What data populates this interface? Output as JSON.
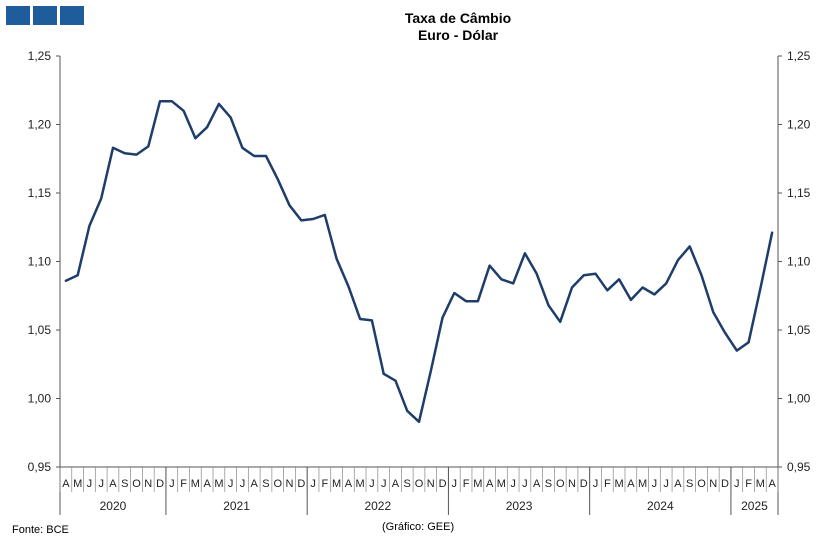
{
  "title": "Taxa de Câmbio",
  "subtitle": "Euro - Dólar",
  "source": "Fonte: BCE",
  "credit": "(Gráfico: GEE)",
  "colors": {
    "line": "#1f3d6b",
    "logo": "#1f5c9b"
  },
  "chart_data": {
    "type": "line",
    "title": "Taxa de Câmbio",
    "subtitle": "Euro - Dólar",
    "ylim": [
      0.95,
      1.25
    ],
    "y_ticks": [
      "0,95",
      "1,00",
      "1,05",
      "1,10",
      "1,15",
      "1,20",
      "1,25"
    ],
    "y_tick_values": [
      0.95,
      1.0,
      1.05,
      1.1,
      1.15,
      1.2,
      1.25
    ],
    "grid": false,
    "months": [
      "A",
      "M",
      "J",
      "J",
      "A",
      "S",
      "O",
      "N",
      "D",
      "J",
      "F",
      "M",
      "A",
      "M",
      "J",
      "J",
      "A",
      "S",
      "O",
      "N",
      "D",
      "J",
      "F",
      "M",
      "A",
      "M",
      "J",
      "J",
      "A",
      "S",
      "O",
      "N",
      "D",
      "J",
      "F",
      "M",
      "A",
      "M",
      "J",
      "J",
      "A",
      "S",
      "O",
      "N",
      "D",
      "J",
      "F",
      "M",
      "A",
      "M",
      "J",
      "J",
      "A",
      "S",
      "O",
      "N",
      "D",
      "J",
      "F",
      "M",
      "A"
    ],
    "years": [
      {
        "label": "2020",
        "count": 9
      },
      {
        "label": "2021",
        "count": 12
      },
      {
        "label": "2022",
        "count": 12
      },
      {
        "label": "2023",
        "count": 12
      },
      {
        "label": "2024",
        "count": 12
      },
      {
        "label": "2025",
        "count": 4
      }
    ],
    "series": [
      {
        "values": [
          1.086,
          1.09,
          1.126,
          1.146,
          1.183,
          1.179,
          1.178,
          1.184,
          1.217,
          1.217,
          1.21,
          1.19,
          1.198,
          1.215,
          1.205,
          1.183,
          1.177,
          1.177,
          1.16,
          1.141,
          1.13,
          1.131,
          1.134,
          1.102,
          1.082,
          1.058,
          1.057,
          1.018,
          1.013,
          0.991,
          0.983,
          1.02,
          1.059,
          1.077,
          1.071,
          1.071,
          1.097,
          1.087,
          1.084,
          1.106,
          1.091,
          1.068,
          1.056,
          1.081,
          1.09,
          1.091,
          1.079,
          1.087,
          1.072,
          1.081,
          1.076,
          1.084,
          1.101,
          1.111,
          1.09,
          1.063,
          1.048,
          1.035,
          1.041,
          1.08,
          1.121
        ]
      }
    ]
  }
}
